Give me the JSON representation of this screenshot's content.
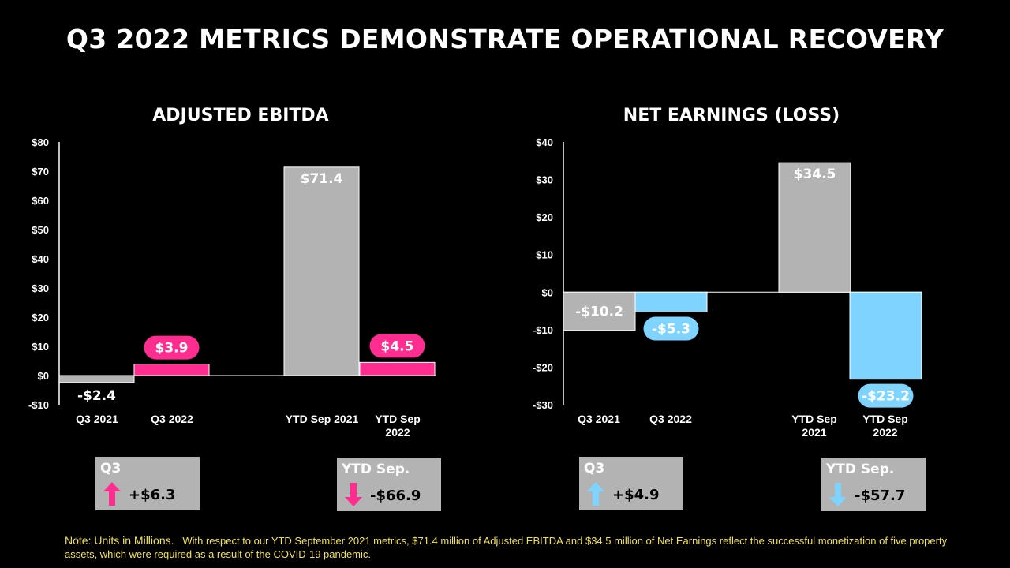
{
  "title": "Q3 2022 METRICS DEMONSTRATE OPERATIONAL RECOVERY",
  "colors": {
    "gray": "#b3b3b3",
    "pink": "#ff2d8f",
    "blue": "#7fd4ff",
    "note": "#f3e34a"
  },
  "chart_data": [
    {
      "type": "bar",
      "title": "ADJUSTED EBITDA",
      "categories": [
        "Q3 2021",
        "Q3 2022",
        "YTD Sep 2021",
        "YTD Sep 2022"
      ],
      "values": [
        -2.4,
        3.9,
        71.4,
        4.5
      ],
      "value_labels": [
        "-$2.4",
        "$3.9",
        "$71.4",
        "$4.5"
      ],
      "ylim": [
        -10,
        80
      ],
      "yticks": [
        -10,
        0,
        10,
        20,
        30,
        40,
        50,
        60,
        70,
        80
      ],
      "ytick_labels": [
        "-$10",
        "$0",
        "$10",
        "$20",
        "$30",
        "$40",
        "$50",
        "$60",
        "$70",
        "$80"
      ],
      "bar_colors": [
        "gray",
        "pink",
        "gray",
        "pink"
      ],
      "grid": false
    },
    {
      "type": "bar",
      "title": "NET EARNINGS (LOSS)",
      "categories": [
        "Q3 2021",
        "Q3 2022",
        "YTD Sep 2021",
        "YTD Sep 2022"
      ],
      "values": [
        -10.2,
        -5.3,
        34.5,
        -23.2
      ],
      "value_labels": [
        "-$10.2",
        "-$5.3",
        "$34.5",
        "-$23.2"
      ],
      "ylim": [
        -30,
        40
      ],
      "yticks": [
        -30,
        -20,
        -10,
        0,
        10,
        20,
        30,
        40
      ],
      "ytick_labels": [
        "-$30",
        "-$20",
        "-$10",
        "$0",
        "$10",
        "$20",
        "$30",
        "$40"
      ],
      "bar_colors": [
        "gray",
        "blue",
        "gray",
        "blue"
      ],
      "grid": false
    }
  ],
  "summary_boxes": [
    {
      "label": "Q3",
      "value": "+$6.3",
      "direction": "up",
      "color": "pink",
      "icon": "arrow-up-icon"
    },
    {
      "label": "YTD Sep.",
      "value": "-$66.9",
      "direction": "down",
      "color": "pink",
      "icon": "arrow-down-icon"
    },
    {
      "label": "Q3",
      "value": "+$4.9",
      "direction": "up",
      "color": "blue",
      "icon": "arrow-up-icon"
    },
    {
      "label": "YTD Sep.",
      "value": "-$57.7",
      "direction": "down",
      "color": "blue",
      "icon": "arrow-down-icon"
    }
  ],
  "note": {
    "lead": "Note: Units in Millions.",
    "text": "With respect to our YTD September 2021 metrics, $71.4 million of Adjusted EBITDA and $34.5 million of Net Earnings reflect the successful monetization of five property assets, which were required as a result of the COVID-19 pandemic."
  }
}
